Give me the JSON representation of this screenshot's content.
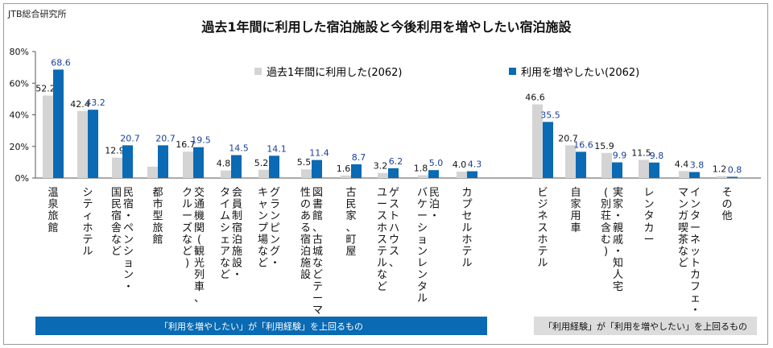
{
  "org": "JTB総合研究所",
  "chart_data": {
    "type": "bar",
    "title": "過去1年間に利用した宿泊施設と今後利用を増やしたい宿泊施設",
    "ylim": [
      0,
      80
    ],
    "yticks": [
      "0%",
      "20%",
      "40%",
      "60%",
      "80%"
    ],
    "ytick_values": [
      0,
      20,
      40,
      60,
      80
    ],
    "grid": false,
    "legend_position": "top",
    "categories": [
      "温泉旅館",
      "シティホテル",
      "民宿・ペンション・国民宿舎など",
      "都市型旅館",
      "交通機関(観光列車、クルーズなど)",
      "会員制宿泊施設・タイムシェアなど",
      "グランピング・キャンプ場など",
      "図書館、古城などテーマ性のある宿泊施設",
      "古民家、町屋",
      "ゲストハウス、ユースホステルなど",
      "民泊・バケーションレンタル",
      "カプセルホテル",
      "ビジネスホテル",
      "自家用車",
      "実家・親戚・知人宅(別荘含む)",
      "レンタカー",
      "インターネットカフェ・マンガ喫茶など",
      "その他"
    ],
    "category_label_columns": [
      [
        "温泉旅館"
      ],
      [
        "シティホテル"
      ],
      [
        "民宿・ペンション・",
        "国民宿舎など"
      ],
      [
        "都市型旅館"
      ],
      [
        "交通機関(観光列車、",
        "クルーズなど)"
      ],
      [
        "会員制宿泊施設・",
        "タイムシェアなど"
      ],
      [
        "グランピング・",
        "キャンプ場など"
      ],
      [
        "図書館、古城などテーマ",
        "性のある宿泊施設"
      ],
      [
        "古民家、町屋"
      ],
      [
        "ゲストハウス、",
        "ユースホステルなど"
      ],
      [
        "民泊・",
        "バケーションレンタル"
      ],
      [
        "カプセルホテル"
      ],
      [
        "ビジネスホテル"
      ],
      [
        "自家用車"
      ],
      [
        "実家・親戚・知人宅",
        "(別荘含む)"
      ],
      [
        "レンタカー"
      ],
      [
        "インターネットカフェ・",
        "マンガ喫茶など"
      ],
      [
        "その他"
      ]
    ],
    "series": [
      {
        "name": "過去1年間に利用した(2062)",
        "color": "#d4d4d4",
        "values": [
          52.2,
          42.4,
          12.9,
          7.2,
          16.7,
          4.8,
          5.2,
          5.5,
          1.6,
          3.2,
          1.8,
          4.0,
          46.6,
          20.7,
          15.9,
          11.5,
          4.4,
          1.2
        ],
        "labels": [
          "52.2",
          "42.4",
          "12.9",
          "",
          "16.7",
          "4.8",
          "5.2",
          "5.5",
          "1.6",
          "3.2",
          "1.8",
          "4.0",
          "46.6",
          "20.7",
          "15.9",
          "11.5",
          "4.4",
          "1.2"
        ]
      },
      {
        "name": "利用を増やしたい(2062)",
        "color": "#0a6ab3",
        "label_color": "#1a3f9a",
        "values": [
          68.6,
          43.2,
          20.7,
          20.7,
          19.5,
          14.5,
          14.1,
          11.4,
          8.7,
          6.2,
          5.0,
          4.3,
          35.5,
          16.6,
          9.9,
          9.8,
          3.8,
          0.8
        ],
        "labels": [
          "68.6",
          "43.2",
          "20.7",
          "20.7",
          "19.5",
          "14.5",
          "14.1",
          "11.4",
          "8.7",
          "6.2",
          "5.0",
          "4.3",
          "35.5",
          "16.6",
          "9.9",
          "9.8",
          "3.8",
          "0.8"
        ]
      }
    ]
  },
  "banners": {
    "left": "「利用を増やしたい」が「利用経験」を上回るもの",
    "right": "「利用経験」が「利用を増やしたい」を上回るもの"
  }
}
